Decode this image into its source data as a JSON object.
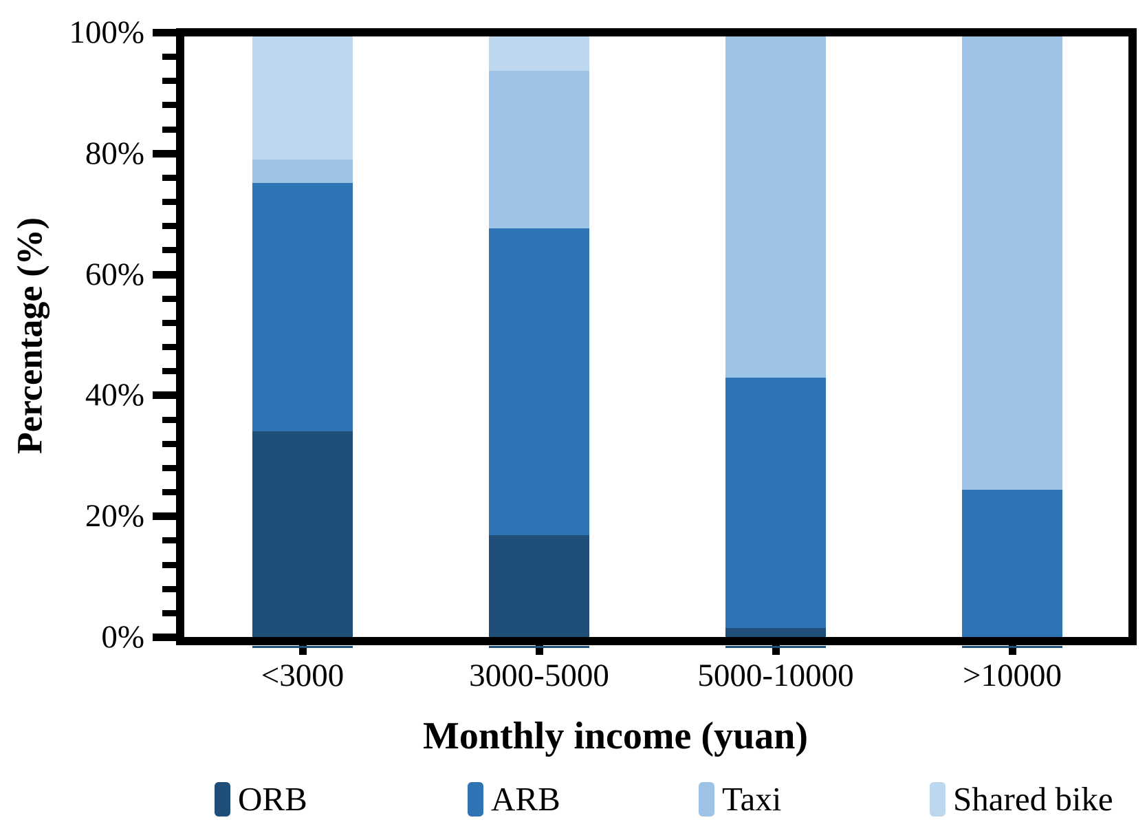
{
  "chart_data": {
    "type": "bar",
    "stacked": true,
    "percent_stacked": true,
    "title": "",
    "categories": [
      "<3000",
      "3000-5000",
      "5000-10000",
      ">10000"
    ],
    "series": [
      {
        "name": "ORB",
        "color": "#1F4E78",
        "values": [
          34.0,
          16.8,
          1.5,
          0.0
        ]
      },
      {
        "name": "ARB",
        "color": "#2E74B4",
        "values": [
          41.1,
          50.8,
          41.4,
          24.3
        ]
      },
      {
        "name": "Taxi",
        "color": "#9DC3E6",
        "values": [
          3.8,
          26.0,
          57.1,
          75.7
        ]
      },
      {
        "name": "Shared bike",
        "color": "#BDD7EE",
        "values": [
          21.1,
          6.4,
          0.0,
          0.0
        ]
      }
    ],
    "xlabel": "Monthly income (yuan)",
    "ylabel": "Percentage (%)",
    "ylim": [
      0,
      100
    ],
    "y_major_ticks": [
      0,
      20,
      40,
      60,
      80,
      100
    ],
    "y_tick_labels": [
      "0%",
      "20%",
      "40%",
      "60%",
      "80%",
      "100%"
    ],
    "y_minor_tick_step": 4,
    "grid": false,
    "legend_position": "bottom",
    "axis_color": "#000000",
    "background_color": "#ffffff"
  }
}
